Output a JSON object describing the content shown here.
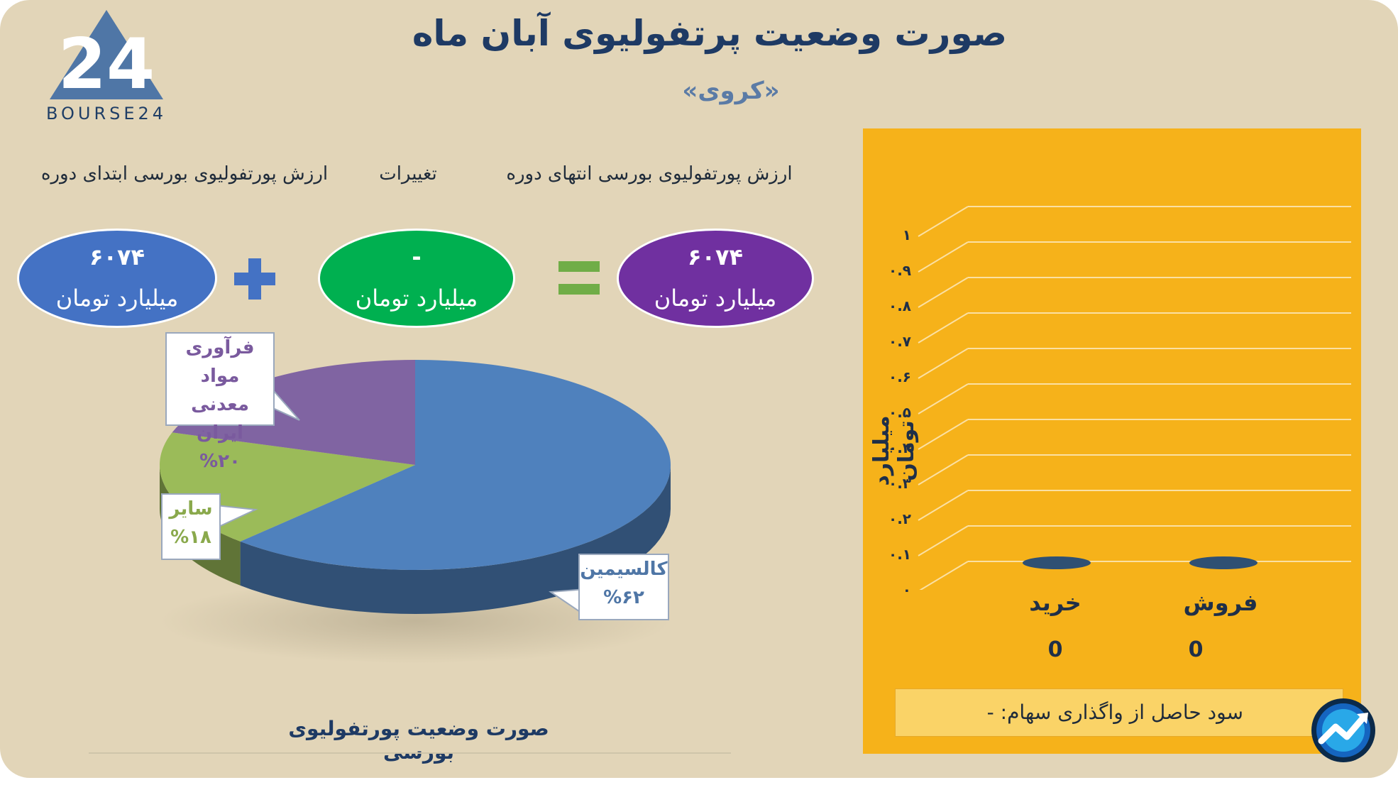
{
  "header": {
    "title": "صورت وضعیت پرتفولیوی آبان ماه",
    "subtitle": "«کروی»",
    "logo_text": "BOURSE24",
    "logo_mark": "24"
  },
  "summary": {
    "start_label": "ارزش پورتفولیوی بورسی ابتدای دوره",
    "change_label": "تغییرات",
    "end_label": "ارزش پورتفولیوی بورسی انتهای دوره",
    "start_value": "۶۰۷۴",
    "start_unit": "میلیارد تومان",
    "change_value": "-",
    "change_unit": "میلیارد تومان",
    "end_value": "۶۰۷۴",
    "end_unit": "میلیارد تومان",
    "plus_symbol": "+",
    "colors": {
      "start": "#4472c4",
      "change": "#00b050",
      "end": "#7030a0",
      "plus": "#4472c4",
      "equals": "#70ad47"
    }
  },
  "chart_data": [
    {
      "type": "pie",
      "title": "صورت وضعیت پورتفولیوی بورسی",
      "slices": [
        {
          "label": "کالسیمین",
          "value": 62,
          "display": "%۶۲",
          "color": "#4f81bd"
        },
        {
          "label": "سایر",
          "value": 18,
          "display": "%۱۸",
          "color": "#9bbb59"
        },
        {
          "label": "فرآوری مواد معدنی ایران",
          "label_line1": "فرآوری مواد",
          "label_line2": "معدنی ایران",
          "value": 20,
          "display": "%۲۰",
          "color": "#8064a2"
        }
      ]
    },
    {
      "type": "bar",
      "categories": [
        "خرید",
        "فروش"
      ],
      "values": [
        0,
        0
      ],
      "value_labels": [
        "0",
        "0"
      ],
      "ylabel": "میلیارد تومان",
      "ylim": [
        0,
        1
      ],
      "yticks": [
        "۰",
        "۰.۱",
        "۰.۲",
        "۰.۳",
        "۰.۴",
        "۰.۵",
        "۰.۶",
        "۰.۷",
        "۰.۸",
        "۰.۹",
        "۱"
      ],
      "grid": true,
      "color": "#2f5073",
      "background": "#f6b21a"
    }
  ],
  "profit": {
    "text": "سود حاصل از واگذاری سهام: -"
  }
}
